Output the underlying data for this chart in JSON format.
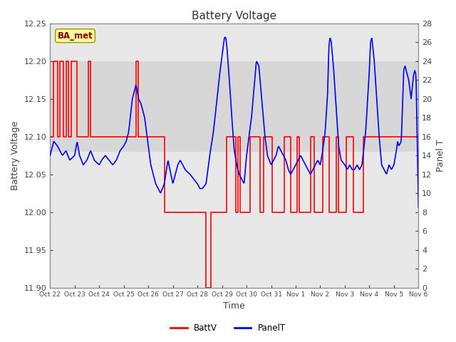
{
  "title": "Battery Voltage",
  "xlabel": "Time",
  "ylabel_left": "Battery Voltage",
  "ylabel_right": "Panel T",
  "ylim_left": [
    11.9,
    12.25
  ],
  "ylim_right": [
    0,
    28
  ],
  "background_color": "#ffffff",
  "plot_bg_color": "#e8e8e8",
  "shaded_band_lo": 12.08,
  "shaded_band_hi": 12.2,
  "shaded_band_color": "#d0d0d0",
  "xtick_labels": [
    "Oct 22",
    "Oct 23",
    "Oct 24",
    "Oct 25",
    "Oct 26",
    "Oct 27",
    "Oct 28",
    "Oct 29",
    "Oct 30",
    "Oct 31",
    "Nov 1",
    "Nov 2",
    "Nov 3",
    "Nov 4",
    "Nov 5",
    "Nov 6"
  ],
  "battv_color": "#ff0000",
  "panelt_color": "#0000ff",
  "legend_label": "BA_met",
  "legend_bg": "#ffff99",
  "legend_edge": "#999900",
  "title_fontsize": 11,
  "axis_fontsize": 9,
  "tick_fontsize": 8,
  "yticks_left": [
    11.9,
    11.95,
    12.0,
    12.05,
    12.1,
    12.15,
    12.2,
    12.25
  ],
  "yticks_right": [
    0,
    2,
    4,
    6,
    8,
    10,
    12,
    14,
    16,
    18,
    20,
    22,
    24,
    26,
    28
  ]
}
